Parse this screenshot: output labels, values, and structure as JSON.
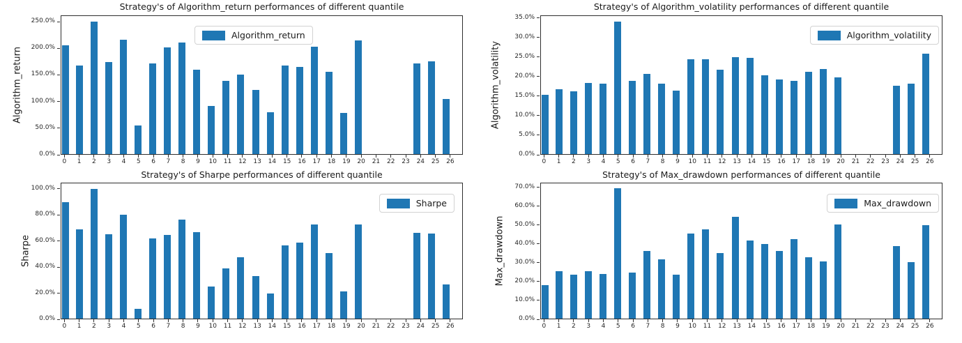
{
  "figure": {
    "background": "#ffffff",
    "bar_color": "#1f77b4",
    "axis_color": "#2e2e2e",
    "grid": "off"
  },
  "chart_data": [
    {
      "type": "bar",
      "title": "Strategy's of Algorithm_return performances of different quantile",
      "ylabel": "Algorithm_return",
      "legend": "Algorithm_return",
      "legend_position": "upper-center",
      "x_labels": [
        "0",
        "1",
        "2",
        "3",
        "4",
        "5",
        "6",
        "7",
        "8",
        "9",
        "10",
        "11",
        "12",
        "13",
        "14",
        "15",
        "16",
        "17",
        "18",
        "19",
        "20",
        "21",
        "22",
        "23",
        "24",
        "25",
        "26"
      ],
      "values": [
        204,
        167,
        249,
        173,
        215,
        54,
        170,
        201,
        210,
        159,
        91,
        137,
        149,
        120,
        78,
        167,
        164,
        202,
        155,
        77,
        213,
        0,
        0,
        0,
        170,
        174,
        103
      ],
      "unit": "%",
      "ylim": [
        0,
        262
      ],
      "yticks": [
        0,
        50,
        100,
        150,
        200,
        250
      ],
      "ytick_labels": [
        "0.0%",
        "50.0%",
        "100.0%",
        "150.0%",
        "200.0%",
        "250.0%"
      ]
    },
    {
      "type": "bar",
      "title": "Strategy's of Algorithm_volatility performances of different quantile",
      "ylabel": "Algorithm_volatility",
      "legend": "Algorithm_volatility",
      "legend_position": "upper-right",
      "x_labels": [
        "0",
        "1",
        "2",
        "3",
        "4",
        "5",
        "6",
        "7",
        "8",
        "9",
        "10",
        "11",
        "12",
        "13",
        "14",
        "15",
        "16",
        "17",
        "18",
        "19",
        "20",
        "21",
        "22",
        "23",
        "24",
        "25",
        "26"
      ],
      "values": [
        15.1,
        16.6,
        16.1,
        18.2,
        18.0,
        34.0,
        18.7,
        20.5,
        18.1,
        16.3,
        24.3,
        24.3,
        21.6,
        24.9,
        24.7,
        20.1,
        19.1,
        18.7,
        21.0,
        21.8,
        19.6,
        0,
        0,
        0,
        17.5,
        18.1,
        25.7
      ],
      "unit": "%",
      "ylim": [
        0,
        35.7
      ],
      "yticks": [
        0,
        5,
        10,
        15,
        20,
        25,
        30,
        35
      ],
      "ytick_labels": [
        "0.0%",
        "5.0%",
        "10.0%",
        "15.0%",
        "20.0%",
        "25.0%",
        "30.0%",
        "35.0%"
      ]
    },
    {
      "type": "bar",
      "title": "Strategy's of Sharpe performances of different quantile",
      "ylabel": "Sharpe",
      "legend": "Sharpe",
      "legend_position": "upper-right",
      "x_labels": [
        "0",
        "1",
        "2",
        "3",
        "4",
        "5",
        "6",
        "7",
        "8",
        "9",
        "10",
        "11",
        "12",
        "13",
        "14",
        "15",
        "16",
        "17",
        "18",
        "19",
        "20",
        "21",
        "22",
        "23",
        "24",
        "25",
        "26"
      ],
      "values": [
        89.3,
        68.5,
        99.3,
        64.5,
        79.3,
        7.5,
        61.5,
        63.9,
        76.0,
        66.4,
        24.3,
        38.6,
        46.9,
        32.6,
        19.1,
        56.2,
        58.0,
        71.9,
        50.0,
        20.9,
        71.9,
        0,
        0,
        0,
        65.7,
        65.3,
        26.3
      ],
      "unit": "%",
      "ylim": [
        0,
        104.6
      ],
      "yticks": [
        0,
        20,
        40,
        60,
        80,
        100
      ],
      "ytick_labels": [
        "0.0%",
        "20.0%",
        "40.0%",
        "60.0%",
        "80.0%",
        "100.0%"
      ]
    },
    {
      "type": "bar",
      "title": "Strategy's of Max_drawdown performances of different quantile",
      "ylabel": "Max_drawdown",
      "legend": "Max_drawdown",
      "legend_position": "upper-right",
      "x_labels": [
        "0",
        "1",
        "2",
        "3",
        "4",
        "5",
        "6",
        "7",
        "8",
        "9",
        "10",
        "11",
        "12",
        "13",
        "14",
        "15",
        "16",
        "17",
        "18",
        "19",
        "20",
        "21",
        "22",
        "23",
        "24",
        "25",
        "26"
      ],
      "values": [
        17.6,
        25.3,
        23.4,
        25.3,
        23.8,
        69.1,
        24.6,
        35.9,
        31.6,
        23.4,
        45.3,
        47.4,
        34.8,
        54.0,
        41.5,
        39.4,
        35.8,
        42.3,
        32.4,
        30.3,
        49.8,
        0,
        0,
        0,
        38.5,
        30.0,
        49.4
      ],
      "unit": "%",
      "ylim": [
        0,
        72.5
      ],
      "yticks": [
        0,
        10,
        20,
        30,
        40,
        50,
        60,
        70
      ],
      "ytick_labels": [
        "0.0%",
        "10.0%",
        "20.0%",
        "30.0%",
        "40.0%",
        "50.0%",
        "60.0%",
        "70.0%"
      ]
    }
  ]
}
